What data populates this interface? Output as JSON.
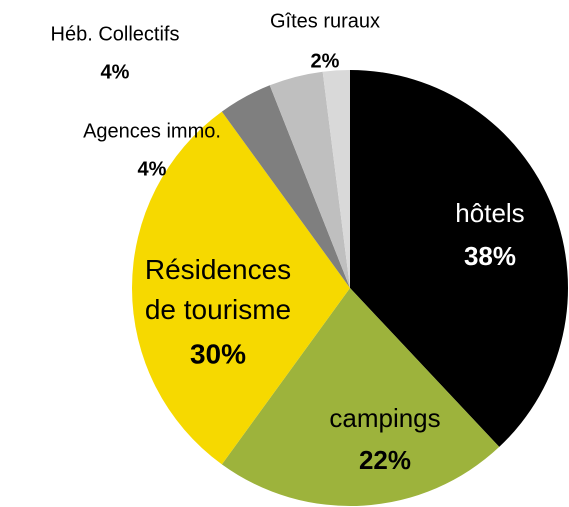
{
  "chart_data": {
    "type": "pie",
    "categories": [
      "hôtels",
      "campings",
      "Résidences de tourisme",
      "Agences immo.",
      "Héb. Collectifs",
      "Gîtes ruraux"
    ],
    "values": [
      38,
      22,
      30,
      4,
      4,
      2
    ],
    "value_labels": [
      "38%",
      "22%",
      "30%",
      "4%",
      "4%",
      "2%"
    ],
    "colors": [
      "#000000",
      "#9db33c",
      "#f6d900",
      "#7f7f7f",
      "#bfbfbf",
      "#d9d9d9"
    ]
  }
}
